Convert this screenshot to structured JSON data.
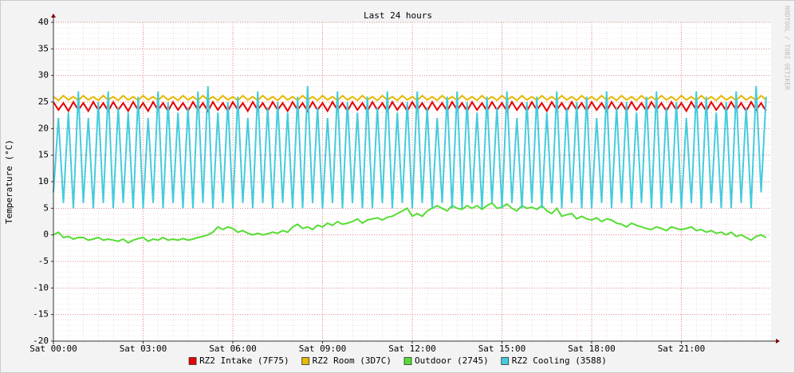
{
  "chart_data": {
    "type": "line",
    "title": "Last 24 hours",
    "y_label": "Temperature (°C)",
    "watermark": "RRDTOOL / TOBI OETIKER",
    "grid": true,
    "legend": "bottom",
    "xlim": [
      0,
      1440
    ],
    "xticks": [
      {
        "value": 0,
        "label": "Sat 00:00"
      },
      {
        "value": 180,
        "label": "Sat 03:00"
      },
      {
        "value": 360,
        "label": "Sat 06:00"
      },
      {
        "value": 540,
        "label": "Sat 09:00"
      },
      {
        "value": 720,
        "label": "Sat 12:00"
      },
      {
        "value": 900,
        "label": "Sat 15:00"
      },
      {
        "value": 1080,
        "label": "Sat 18:00"
      },
      {
        "value": 1260,
        "label": "Sat 21:00"
      }
    ],
    "ylim": [
      -20,
      40
    ],
    "yticks": [
      -20,
      -15,
      -10,
      -5,
      0,
      5,
      10,
      15,
      20,
      25,
      30,
      35,
      40
    ],
    "x": [
      0,
      10,
      20,
      30,
      40,
      50,
      60,
      70,
      80,
      90,
      100,
      110,
      120,
      130,
      140,
      150,
      160,
      170,
      180,
      190,
      200,
      210,
      220,
      230,
      240,
      250,
      260,
      270,
      280,
      290,
      300,
      310,
      320,
      330,
      340,
      350,
      360,
      370,
      380,
      390,
      400,
      410,
      420,
      430,
      440,
      450,
      460,
      470,
      480,
      490,
      500,
      510,
      520,
      530,
      540,
      550,
      560,
      570,
      580,
      590,
      600,
      610,
      620,
      630,
      640,
      650,
      660,
      670,
      680,
      690,
      700,
      710,
      720,
      730,
      740,
      750,
      760,
      770,
      780,
      790,
      800,
      810,
      820,
      830,
      840,
      850,
      860,
      870,
      880,
      890,
      900,
      910,
      920,
      930,
      940,
      950,
      960,
      970,
      980,
      990,
      1000,
      1010,
      1020,
      1030,
      1040,
      1050,
      1060,
      1070,
      1080,
      1090,
      1100,
      1110,
      1120,
      1130,
      1140,
      1150,
      1160,
      1170,
      1180,
      1190,
      1200,
      1210,
      1220,
      1230,
      1240,
      1250,
      1260,
      1270,
      1280,
      1290,
      1300,
      1310,
      1320,
      1330,
      1340,
      1350,
      1360,
      1370,
      1380,
      1390,
      1400,
      1410,
      1420,
      1430
    ],
    "series": [
      {
        "name": "RZ2 Intake (7F75)",
        "color": "#e60000",
        "values": [
          25,
          23.5,
          24.8,
          23.3,
          25,
          23.5,
          24.8,
          23.3,
          25,
          23.5,
          24.8,
          23.3,
          25,
          23.5,
          24.8,
          23.3,
          25,
          23.5,
          24.8,
          23.3,
          25,
          23.5,
          24.8,
          23.3,
          25,
          23.5,
          24.8,
          23.3,
          25,
          23.5,
          24.8,
          23.3,
          25,
          23.5,
          24.8,
          23.3,
          25,
          23.5,
          24.8,
          23.3,
          25,
          23.5,
          24.8,
          23.3,
          25,
          23.5,
          24.8,
          23.3,
          25,
          23.5,
          24.8,
          23.3,
          25,
          23.5,
          24.8,
          23.3,
          25,
          23.5,
          24.8,
          23.3,
          25,
          23.5,
          24.8,
          23.3,
          25,
          23.5,
          24.8,
          23.3,
          25,
          23.5,
          24.8,
          23.3,
          25,
          23.5,
          24.8,
          23.3,
          25,
          23.5,
          24.8,
          23.3,
          25,
          23.5,
          24.8,
          23.3,
          25,
          23.5,
          24.8,
          23.3,
          25,
          23.5,
          24.8,
          23.3,
          25,
          23.5,
          24.8,
          23.3,
          25,
          23.5,
          24.8,
          23.3,
          25,
          23.5,
          24.8,
          23.3,
          25,
          23.5,
          24.8,
          23.3,
          25,
          23.5,
          24.8,
          23.3,
          25,
          23.5,
          24.8,
          23.3,
          25,
          23.5,
          24.8,
          23.3,
          25,
          23.5,
          24.8,
          23.3,
          25,
          23.5,
          24.8,
          23.3,
          25,
          23.5,
          24.8,
          23.3,
          25,
          23.5,
          24.8,
          23.3,
          25,
          23.5,
          24.8,
          23.3,
          25,
          23.5,
          24.8,
          23.3
        ]
      },
      {
        "name": "RZ2 Room (3D7C)",
        "color": "#e6b800",
        "values": [
          26,
          25.3,
          26.2,
          25.4,
          26,
          25.3,
          26.2,
          25.4,
          26,
          25.3,
          26.2,
          25.4,
          26,
          25.3,
          26.2,
          25.4,
          26,
          25.3,
          26.2,
          25.4,
          26,
          25.3,
          26.2,
          25.4,
          26,
          25.3,
          26.2,
          25.4,
          26,
          25.3,
          26.2,
          25.4,
          26,
          25.3,
          26.2,
          25.4,
          26,
          25.3,
          26.2,
          25.4,
          26,
          25.3,
          26.2,
          25.4,
          26,
          25.3,
          26.2,
          25.4,
          26,
          25.3,
          26.2,
          25.4,
          26,
          25.3,
          26.2,
          25.4,
          26,
          25.3,
          26.2,
          25.4,
          26,
          25.3,
          26.2,
          25.4,
          26,
          25.3,
          26.2,
          25.4,
          26,
          25.3,
          26.2,
          25.4,
          26,
          25.3,
          26.2,
          25.4,
          26,
          25.3,
          26.2,
          25.4,
          26,
          25.3,
          26.2,
          25.4,
          26,
          25.3,
          26.2,
          25.4,
          26,
          25.3,
          26.2,
          25.4,
          26,
          25.3,
          26.2,
          25.4,
          26,
          25.3,
          26.2,
          25.4,
          26,
          25.3,
          26.2,
          25.4,
          26,
          25.3,
          26.2,
          25.4,
          26,
          25.3,
          26.2,
          25.4,
          26,
          25.3,
          26.2,
          25.4,
          26,
          25.3,
          26.2,
          25.4,
          26,
          25.3,
          26.2,
          25.4,
          26,
          25.3,
          26.2,
          25.4,
          26,
          25.3,
          26.2,
          25.4,
          26,
          25.3,
          26.2,
          25.4,
          26,
          25.3,
          26.2,
          25.4,
          26,
          25.3,
          26.2,
          25.4
        ]
      },
      {
        "name": "Outdoor (2745)",
        "color": "#55dd33",
        "values": [
          0,
          0.5,
          -0.5,
          -0.3,
          -0.8,
          -0.5,
          -0.5,
          -1,
          -0.8,
          -0.5,
          -1,
          -0.8,
          -1,
          -1.2,
          -0.8,
          -1.5,
          -1,
          -0.7,
          -0.5,
          -1.2,
          -0.8,
          -1,
          -0.5,
          -1,
          -0.8,
          -1,
          -0.7,
          -1,
          -0.8,
          -0.5,
          -0.3,
          0,
          0.5,
          1.5,
          1,
          1.5,
          1.2,
          0.5,
          0.8,
          0.3,
          0,
          0.3,
          0,
          0.2,
          0.5,
          0.3,
          0.8,
          0.5,
          1.5,
          2,
          1.2,
          1.5,
          1,
          1.8,
          1.5,
          2.2,
          1.8,
          2.5,
          2,
          2.2,
          2.5,
          3,
          2.2,
          2.8,
          3,
          3.2,
          2.8,
          3.3,
          3.5,
          4,
          4.5,
          5,
          3.5,
          4,
          3.5,
          4.5,
          5,
          5.5,
          5,
          4.5,
          5.5,
          5,
          4.8,
          5.5,
          5,
          5.5,
          4.8,
          5.5,
          6,
          5,
          5.2,
          5.8,
          5,
          4.5,
          5.5,
          5,
          5.2,
          4.8,
          5.5,
          4.5,
          4,
          5,
          3.5,
          3.8,
          4,
          3,
          3.5,
          3,
          2.8,
          3.2,
          2.5,
          3,
          2.8,
          2.2,
          2,
          1.5,
          2.2,
          1.8,
          1.5,
          1.2,
          1,
          1.5,
          1.2,
          0.8,
          1.5,
          1.2,
          1,
          1.2,
          1.5,
          0.8,
          1,
          0.5,
          0.8,
          0.3,
          0.5,
          0,
          0.5,
          -0.3,
          0,
          -0.5,
          -1,
          -0.3,
          0,
          -0.5
        ]
      },
      {
        "name": "RZ2 Cooling (3588)",
        "color": "#44ccdd",
        "values": [
          8,
          22,
          6,
          23,
          5,
          27,
          6,
          22,
          5,
          25,
          6,
          27,
          5,
          24,
          6,
          23,
          5,
          26,
          5,
          22,
          6,
          27,
          5,
          25,
          6,
          23,
          5,
          24,
          5,
          27,
          6,
          28,
          5,
          23,
          6,
          25,
          5,
          26,
          6,
          22,
          5,
          27,
          6,
          24,
          5,
          25,
          6,
          23,
          5,
          26,
          5,
          28,
          6,
          24,
          5,
          22,
          6,
          27,
          5,
          25,
          6,
          23,
          5,
          26,
          5,
          24,
          6,
          27,
          5,
          23,
          6,
          25,
          5,
          27,
          6,
          24,
          5,
          22,
          6,
          26,
          5,
          27,
          5,
          25,
          6,
          23,
          5,
          26,
          6,
          24,
          5,
          27,
          6,
          22,
          5,
          25,
          6,
          26,
          5,
          23,
          6,
          27,
          5,
          24,
          6,
          25,
          5,
          26,
          5,
          22,
          6,
          27,
          5,
          24,
          6,
          25,
          5,
          23,
          6,
          26,
          5,
          27,
          5,
          24,
          6,
          25,
          5,
          22,
          6,
          27,
          5,
          26,
          6,
          23,
          5,
          25,
          5,
          27,
          6,
          24,
          5,
          28,
          8,
          26
        ]
      }
    ]
  }
}
